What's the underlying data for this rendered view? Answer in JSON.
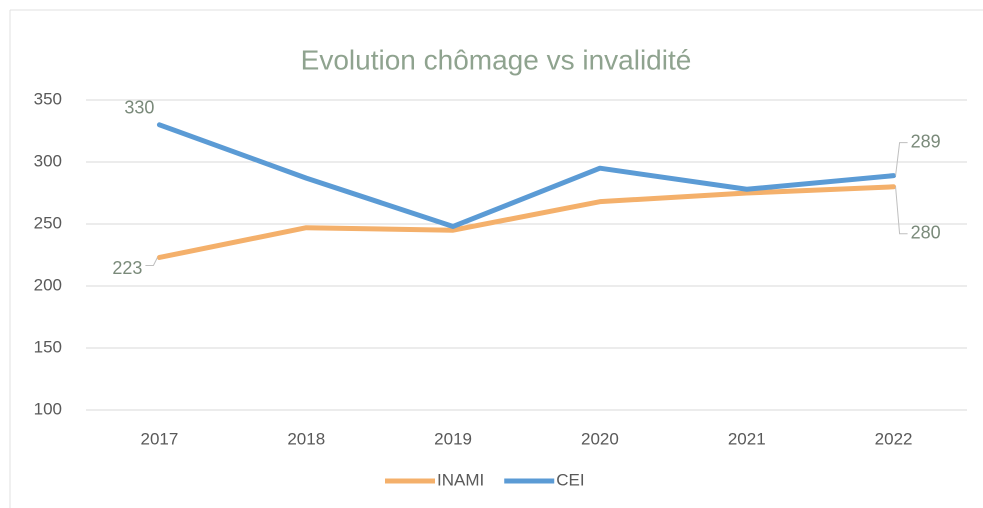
{
  "chart_data": {
    "type": "line",
    "title": "Evolution chômage vs invalidité",
    "categories": [
      "2017",
      "2018",
      "2019",
      "2020",
      "2021",
      "2022"
    ],
    "series": [
      {
        "name": "INAMI",
        "color": "#f4b06b",
        "values": [
          223,
          247,
          245,
          268,
          275,
          280
        ]
      },
      {
        "name": "CEI",
        "color": "#5b9bd5",
        "values": [
          330,
          287,
          248,
          295,
          278,
          289
        ]
      }
    ],
    "ylim": [
      100,
      350
    ],
    "yticks": [
      100,
      150,
      200,
      250,
      300,
      350
    ],
    "grid": true,
    "data_labels": "ends",
    "legend": "bottom"
  }
}
